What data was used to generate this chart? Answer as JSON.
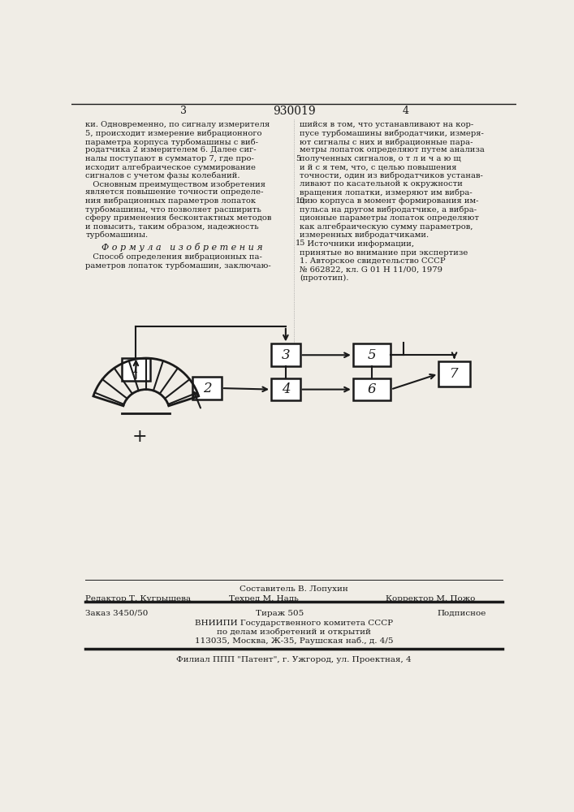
{
  "title_number": "930019",
  "page_left": "3",
  "page_right": "4",
  "bg_color": "#f0ede6",
  "text_color": "#1a1a1a",
  "left_col_text": [
    "ки. Одновременно, по сигналу измерителя",
    "5, происходит измерение вибрационного",
    "параметра корпуса турбомашины с виб-",
    "родатчика 2 измерителем 6. Далее сиг-",
    "налы поступают в сумматор 7, где про-",
    "исходит алгебраическое суммирование",
    "сигналов с учетом фазы колебаний.",
    "   Основным преимуществом изобретения",
    "является повышение точности определе-",
    "ния вибрационных параметров лопаток",
    "турбомашины, что позволяет расширить",
    "сферу применения бесконтактных методов",
    "и повысить, таким образом, надежность",
    "турбомашины."
  ],
  "right_col_text": [
    "шийся в том, что устанавливают на кор-",
    "пусе турбомашины вибродатчики, измеря-",
    "ют сигналы с них и вибрационные пара-",
    "метры лопаток определяют путем анализа",
    "полученных сигналов, о т л и ч а ю щ",
    "и й с я тем, что, с целью повышения",
    "точности, один из вибродатчиков устанав-",
    "ливают по касательной к окружности",
    "вращения лопатки, измеряют им вибра-",
    "цию корпуса в момент формирования им-",
    "пульса на другом вибродатчике, а вибра-",
    "ционные параметры лопаток определяют",
    "как алгебраическую сумму параметров,",
    "измеренных вибродатчиками."
  ],
  "formula_header": "Ф о р м у л а   и з о б р е т е н и я",
  "formula_text": [
    "   Способ определения вибрационных па-",
    "раметров лопаток турбомашин, заключаю-"
  ],
  "sources_header": "   Источники информации,",
  "sources_text": [
    "принятые во внимание при экспертизе",
    "1. Авторское свидетельство СССР",
    "№ 662822, кл. G 01 H 11/00, 1979",
    "(прототип)."
  ],
  "footer_compiler": "Составитель В. Лопухин",
  "footer_editor": "Редактор Т. Кугрышева",
  "footer_tech": "Техред М. Надь",
  "footer_corrector": "Корректор М. Пожо",
  "footer_order": "Заказ 3450/50",
  "footer_tirazh": "Тираж 505",
  "footer_podp": "Подписное",
  "footer_vniip1": "ВНИИПИ Государственного комитета СССР",
  "footer_vniip2": "по делам изобретений и открытий",
  "footer_vniip3": "113035, Москва, Ж-35, Раушская наб., д. 4/5",
  "footer_filial": "Филиал ППП \"Патент\", г. Ужгород, ул. Проектная, 4"
}
